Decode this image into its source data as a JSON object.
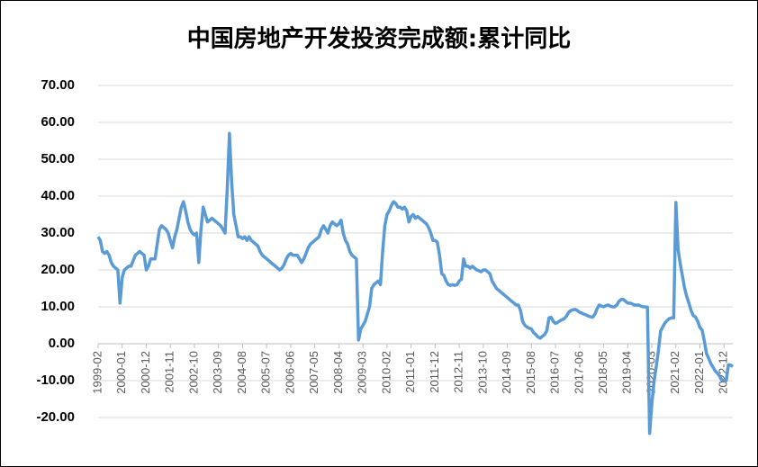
{
  "chart_data": {
    "type": "line",
    "title": "中国房地产开发投资完成额:累计同比",
    "ylim": [
      -20,
      70
    ],
    "yticks": [
      {
        "value": -20,
        "label": "-20.00"
      },
      {
        "value": -10,
        "label": "-10.00"
      },
      {
        "value": 0,
        "label": "0.00"
      },
      {
        "value": 10,
        "label": "10.00"
      },
      {
        "value": 20,
        "label": "20.00"
      },
      {
        "value": 30,
        "label": "30.00"
      },
      {
        "value": 40,
        "label": "40.00"
      },
      {
        "value": 50,
        "label": "50.00"
      },
      {
        "value": 60,
        "label": "60.00"
      },
      {
        "value": 70,
        "label": "70.00"
      }
    ],
    "grid": true,
    "categories": [
      "1999-02",
      null,
      null,
      null,
      null,
      null,
      null,
      null,
      null,
      null,
      null,
      "2000-01",
      null,
      null,
      null,
      null,
      null,
      null,
      null,
      null,
      null,
      null,
      "2000-12",
      null,
      null,
      null,
      null,
      null,
      null,
      null,
      null,
      null,
      null,
      "2001-11",
      null,
      null,
      null,
      null,
      null,
      null,
      null,
      null,
      null,
      null,
      "2002-10",
      null,
      null,
      null,
      null,
      null,
      null,
      null,
      null,
      null,
      null,
      "2003-09",
      null,
      null,
      null,
      null,
      null,
      null,
      null,
      null,
      null,
      null,
      "2004-08",
      null,
      null,
      null,
      null,
      null,
      null,
      null,
      null,
      null,
      null,
      "2005-07",
      null,
      null,
      null,
      null,
      null,
      null,
      null,
      null,
      null,
      null,
      "2006-06",
      null,
      null,
      null,
      null,
      null,
      null,
      null,
      null,
      null,
      null,
      "2007-05",
      null,
      null,
      null,
      null,
      null,
      null,
      null,
      null,
      null,
      null,
      "2008-04",
      null,
      null,
      null,
      null,
      null,
      null,
      null,
      null,
      null,
      null,
      "2009-03",
      null,
      null,
      null,
      null,
      null,
      null,
      null,
      null,
      null,
      null,
      "2010-02",
      null,
      null,
      null,
      null,
      null,
      null,
      null,
      null,
      null,
      null,
      "2011-01",
      null,
      null,
      null,
      null,
      null,
      null,
      null,
      null,
      null,
      null,
      "2011-12",
      null,
      null,
      null,
      null,
      null,
      null,
      null,
      null,
      null,
      null,
      "2012-11",
      null,
      null,
      null,
      null,
      null,
      null,
      null,
      null,
      null,
      null,
      "2013-10",
      null,
      null,
      null,
      null,
      null,
      null,
      null,
      null,
      null,
      null,
      "2014-09",
      null,
      null,
      null,
      null,
      null,
      null,
      null,
      null,
      null,
      null,
      "2015-08",
      null,
      null,
      null,
      null,
      null,
      null,
      null,
      null,
      null,
      null,
      "2016-07",
      null,
      null,
      null,
      null,
      null,
      null,
      null,
      null,
      null,
      null,
      "2017-06",
      null,
      null,
      null,
      null,
      null,
      null,
      null,
      null,
      null,
      null,
      "2018-05",
      null,
      null,
      null,
      null,
      null,
      null,
      null,
      null,
      null,
      null,
      "2019-04",
      null,
      null,
      null,
      null,
      null,
      null,
      null,
      null,
      null,
      null,
      "2020-03",
      null,
      null,
      null,
      null,
      null,
      null,
      null,
      null,
      null,
      null,
      "2021-02",
      null,
      null,
      null,
      null,
      null,
      null,
      null,
      null,
      null,
      null,
      "2022-01",
      null,
      null,
      null,
      null,
      null,
      null,
      null,
      null,
      null,
      null,
      "2022-12",
      null,
      null,
      null,
      null
    ],
    "color": "#5b9bd5",
    "values": [
      29,
      28,
      25,
      24.5,
      25,
      24,
      22,
      21,
      20.5,
      20,
      11,
      18,
      20,
      20.5,
      21,
      21,
      22.5,
      24,
      24.5,
      25,
      24.5,
      24,
      20,
      21,
      23,
      23,
      23,
      27,
      31,
      32,
      31.5,
      31,
      30,
      28,
      26,
      29,
      31,
      34,
      37,
      38.5,
      36,
      33,
      31,
      30,
      29.5,
      30,
      22,
      31,
      37,
      35,
      33,
      33.5,
      34,
      33.5,
      33,
      32.5,
      32,
      31,
      30,
      42,
      57,
      44,
      35,
      32,
      29,
      29,
      28.5,
      29,
      28,
      29,
      28,
      27.5,
      27,
      26.5,
      25,
      24,
      23.5,
      23,
      22.5,
      22,
      21.5,
      21,
      20.5,
      20,
      20.5,
      21.5,
      23,
      24,
      24.5,
      24,
      24,
      24,
      23,
      22,
      23,
      24.5,
      26,
      27,
      27.5,
      28,
      28.5,
      29,
      31,
      32,
      31,
      30,
      32,
      33,
      32.5,
      32,
      32.5,
      33.5,
      30,
      28,
      27,
      25,
      24,
      23.5,
      23,
      1,
      4,
      5,
      6,
      8,
      10,
      15,
      16,
      16.5,
      17,
      16,
      25,
      32,
      35,
      36,
      37.5,
      38.5,
      38,
      37,
      37,
      36.5,
      37,
      36,
      33,
      34.5,
      35,
      34,
      34.5,
      34,
      33.5,
      33,
      32.5,
      31.5,
      30,
      28,
      28,
      27.5,
      24,
      19,
      18.5,
      17,
      16,
      15.8,
      16,
      15.8,
      16,
      17,
      17.5,
      23,
      21,
      21,
      20.5,
      21,
      20.5,
      20,
      19.8,
      19.5,
      20,
      20,
      19.5,
      19,
      17,
      16,
      15,
      14.5,
      14,
      13.5,
      13,
      12.5,
      12,
      11.5,
      11,
      10.5,
      10.5,
      9,
      6,
      5,
      4.5,
      4.2,
      4,
      3,
      2.5,
      1.8,
      1.5,
      2,
      2.5,
      3.5,
      7,
      7.2,
      6,
      5.5,
      5.8,
      6.2,
      6.5,
      6.8,
      7.5,
      8.5,
      9,
      9.2,
      9.3,
      9,
      8.5,
      8.3,
      8,
      7.8,
      7.5,
      7.3,
      7.2,
      8,
      9.5,
      10.5,
      10.2,
      10,
      10.3,
      10.5,
      10.2,
      10,
      10,
      10.5,
      11.5,
      12,
      12,
      11.5,
      11,
      11,
      10.8,
      10.5,
      10.5,
      10.5,
      10.2,
      10,
      10,
      9.9,
      -24.3,
      -16.3,
      -10.3,
      -6.3,
      -1.9,
      3.4,
      4.6,
      5.6,
      6.3,
      6.8,
      7,
      7,
      38.3,
      25.6,
      21.6,
      18.3,
      15,
      12.7,
      10.9,
      8.9,
      7.6,
      7.2,
      6,
      4.4,
      3.7,
      0.7,
      -2.7,
      -4,
      -5.4,
      -6.4,
      -7.4,
      -8,
      -8.8,
      -9.8,
      -10,
      -10,
      -5.7,
      -5.8,
      -6.2
    ]
  }
}
